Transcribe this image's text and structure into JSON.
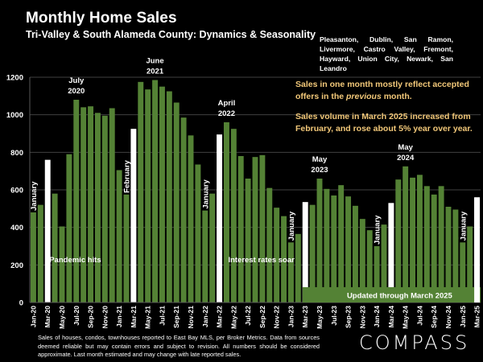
{
  "header": {
    "title": "Monthly Home Sales",
    "subtitle": "Tri-Valley & South Alameda County: Dynamics & Seasonality",
    "cities": "Pleasanton, Dublin, San Ramon, Livermore, Castro Valley, Fremont, Hayward, Union City, Newark, San Leandro"
  },
  "notes": {
    "note1_before": "Sales in one month mostly reflect accepted offers in the ",
    "note1_italic": "previous",
    "note1_after": " month.",
    "note2": "Sales volume in March 2025 increased from February, and rose about 5% year over year."
  },
  "footer": {
    "disclaimer": "Sales of houses, condos, townhouses reported to East Bay MLS, per Broker Metrics. Data from sources deemed reliable but may contain errors and subject to revision. All numbers should be considered approximate.  Last month estimated and may change with late reported sales.",
    "logo": "COMPASS"
  },
  "colors": {
    "bar": "#548235",
    "highlight_bar": "#ffffff",
    "note_text": "#f2c879",
    "gridline": "#404040"
  },
  "chart_data": {
    "type": "bar",
    "title": "Monthly Home Sales",
    "xlabel": "",
    "ylabel": "",
    "ylim": [
      0,
      1200
    ],
    "yticks": [
      0,
      200,
      400,
      600,
      800,
      1000,
      1200
    ],
    "grid": true,
    "categories": [
      "Jan-20",
      "Feb-20",
      "Mar-20",
      "Apr-20",
      "May-20",
      "Jun-20",
      "Jul-20",
      "Aug-20",
      "Sep-20",
      "Oct-20",
      "Nov-20",
      "Dec-20",
      "Jan-21",
      "Feb-21",
      "Mar-21",
      "Apr-21",
      "May-21",
      "Jun-21",
      "Jul-21",
      "Aug-21",
      "Sep-21",
      "Oct-21",
      "Nov-21",
      "Dec-21",
      "Jan-22",
      "Feb-22",
      "Mar-22",
      "Apr-22",
      "May-22",
      "Jun-22",
      "Jul-22",
      "Aug-22",
      "Sep-22",
      "Oct-22",
      "Nov-22",
      "Dec-22",
      "Jan-23",
      "Feb-23",
      "Mar-23",
      "Apr-23",
      "May-23",
      "Jun-23",
      "Jul-23",
      "Aug-23",
      "Sep-23",
      "Oct-23",
      "Nov-23",
      "Dec-23",
      "Jan-24",
      "Feb-24",
      "Mar-24",
      "Apr-24",
      "May-24",
      "Jun-24",
      "Jul-24",
      "Aug-24",
      "Sep-24",
      "Oct-24",
      "Nov-24",
      "Dec-24",
      "Jan-25",
      "Feb-25",
      "Mar-25"
    ],
    "values": [
      480,
      520,
      760,
      580,
      405,
      790,
      1080,
      1040,
      1045,
      1010,
      995,
      1035,
      705,
      575,
      925,
      1175,
      1135,
      1185,
      1150,
      1125,
      1065,
      985,
      890,
      735,
      490,
      580,
      895,
      960,
      925,
      780,
      660,
      775,
      785,
      610,
      505,
      460,
      320,
      365,
      535,
      520,
      660,
      605,
      570,
      625,
      565,
      515,
      445,
      385,
      300,
      415,
      530,
      655,
      725,
      665,
      680,
      620,
      575,
      620,
      510,
      495,
      320,
      405,
      560
    ],
    "highlighted": [
      "Mar-20",
      "Mar-21",
      "Mar-22",
      "Mar-23",
      "Mar-24",
      "Mar-25"
    ],
    "tick_label_every": 2,
    "annotations": [
      {
        "text": "July\n2020",
        "at": "Jul-20",
        "kind": "above"
      },
      {
        "text": "June\n2021",
        "at": "Jun-21",
        "kind": "above"
      },
      {
        "text": "April\n2022",
        "at": "Apr-22",
        "kind": "above"
      },
      {
        "text": "May\n2023",
        "at": "May-23",
        "kind": "above"
      },
      {
        "text": "May\n2024",
        "at": "May-24",
        "kind": "above"
      },
      {
        "text": "January",
        "at": "Jan-20",
        "kind": "vertical"
      },
      {
        "text": "February",
        "at": "Feb-21",
        "kind": "vertical"
      },
      {
        "text": "January",
        "at": "Jan-22",
        "kind": "vertical"
      },
      {
        "text": "January",
        "at": "Jan-23",
        "kind": "vertical"
      },
      {
        "text": "January",
        "at": "Jan-24",
        "kind": "vertical"
      },
      {
        "text": "January",
        "at": "Jan-25",
        "kind": "vertical"
      },
      {
        "text": "Pandemic hits",
        "at": "Mar-20",
        "kind": "inside"
      },
      {
        "text": "Interest rates soar",
        "at": "Apr-22",
        "kind": "inside"
      }
    ],
    "banner": "Updated through March 2025"
  }
}
